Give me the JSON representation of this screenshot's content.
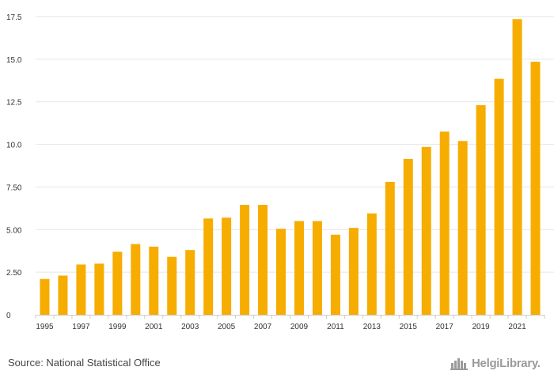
{
  "source": {
    "label": "Source: National Statistical Office"
  },
  "brand": {
    "name": "HelgiLibrary."
  },
  "colors": {
    "bar": "#f6ad00",
    "grid": "#e6e6e6",
    "axis": "#cccccc",
    "text": "#333333"
  },
  "chart_data": {
    "type": "bar",
    "title": "",
    "xlabel": "",
    "ylabel": "",
    "ylim": [
      0,
      17.5
    ],
    "yticks": [
      0,
      2.5,
      5,
      7.5,
      10,
      12.5,
      15,
      17.5
    ],
    "ytick_labels": [
      "0",
      "2.50",
      "5.00",
      "7.50",
      "10.0",
      "12.5",
      "15.0",
      "17.5"
    ],
    "categories": [
      "1995",
      "1996",
      "1997",
      "1998",
      "1999",
      "2000",
      "2001",
      "2002",
      "2003",
      "2004",
      "2005",
      "2006",
      "2007",
      "2008",
      "2009",
      "2010",
      "2011",
      "2012",
      "2013",
      "2014",
      "2015",
      "2016",
      "2017",
      "2018",
      "2019",
      "2020",
      "2021",
      "2022"
    ],
    "xtick_labels": [
      "1995",
      "1997",
      "1999",
      "2001",
      "2003",
      "2005",
      "2007",
      "2009",
      "2011",
      "2013",
      "2015",
      "2017",
      "2019",
      "2021"
    ],
    "values": [
      2.1,
      2.3,
      2.95,
      3.0,
      3.7,
      4.15,
      4.0,
      3.4,
      3.8,
      5.65,
      5.7,
      6.45,
      6.45,
      5.05,
      5.5,
      5.5,
      4.7,
      5.1,
      5.95,
      7.8,
      9.15,
      9.85,
      10.75,
      10.2,
      12.3,
      13.85,
      17.35,
      14.85
    ]
  }
}
